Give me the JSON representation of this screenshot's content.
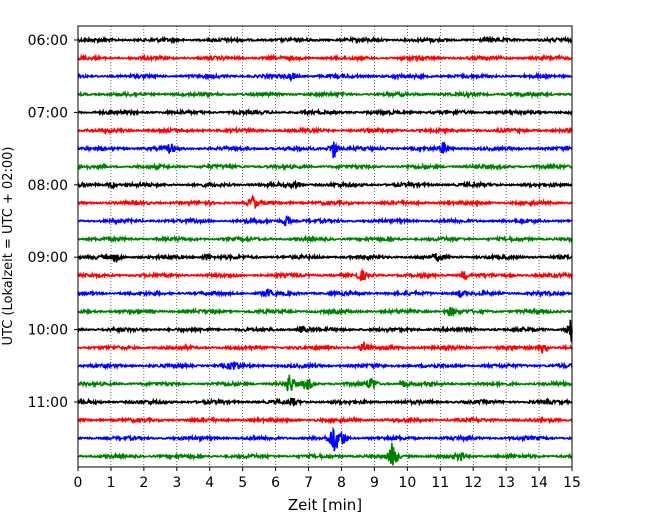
{
  "chart_data": {
    "type": "line",
    "title": "",
    "xlabel": "Zeit  [min]",
    "ylabel": "UTC (Lokalzeit = UTC + 02:00)",
    "xlim": [
      0,
      15
    ],
    "x_ticks": [
      "0",
      "1",
      "2",
      "3",
      "4",
      "5",
      "6",
      "7",
      "8",
      "9",
      "10",
      "11",
      "12",
      "13",
      "14",
      "15"
    ],
    "y_ticks": [
      "06:00",
      "07:00",
      "08:00",
      "09:00",
      "10:00",
      "11:00"
    ],
    "grid": "vertical dotted",
    "legend": "none",
    "trace_minutes": 15,
    "colors": [
      "#000000",
      "#ff0000",
      "#0000ff",
      "#008000"
    ],
    "traces": [
      {
        "start": "06:00",
        "color": "#000000"
      },
      {
        "start": "06:15",
        "color": "#ff0000"
      },
      {
        "start": "06:30",
        "color": "#0000ff"
      },
      {
        "start": "06:45",
        "color": "#008000"
      },
      {
        "start": "07:00",
        "color": "#000000"
      },
      {
        "start": "07:15",
        "color": "#ff0000"
      },
      {
        "start": "07:30",
        "color": "#0000ff"
      },
      {
        "start": "07:45",
        "color": "#008000"
      },
      {
        "start": "08:00",
        "color": "#000000"
      },
      {
        "start": "08:15",
        "color": "#ff0000"
      },
      {
        "start": "08:30",
        "color": "#0000ff"
      },
      {
        "start": "08:45",
        "color": "#008000"
      },
      {
        "start": "09:00",
        "color": "#000000"
      },
      {
        "start": "09:15",
        "color": "#ff0000"
      },
      {
        "start": "09:30",
        "color": "#0000ff"
      },
      {
        "start": "09:45",
        "color": "#008000"
      },
      {
        "start": "10:00",
        "color": "#000000"
      },
      {
        "start": "10:15",
        "color": "#ff0000"
      },
      {
        "start": "10:30",
        "color": "#0000ff"
      },
      {
        "start": "10:45",
        "color": "#008000"
      },
      {
        "start": "11:00",
        "color": "#000000"
      },
      {
        "start": "11:15",
        "color": "#ff0000"
      },
      {
        "start": "11:30",
        "color": "#0000ff"
      },
      {
        "start": "11:45",
        "color": "#008000"
      }
    ]
  }
}
